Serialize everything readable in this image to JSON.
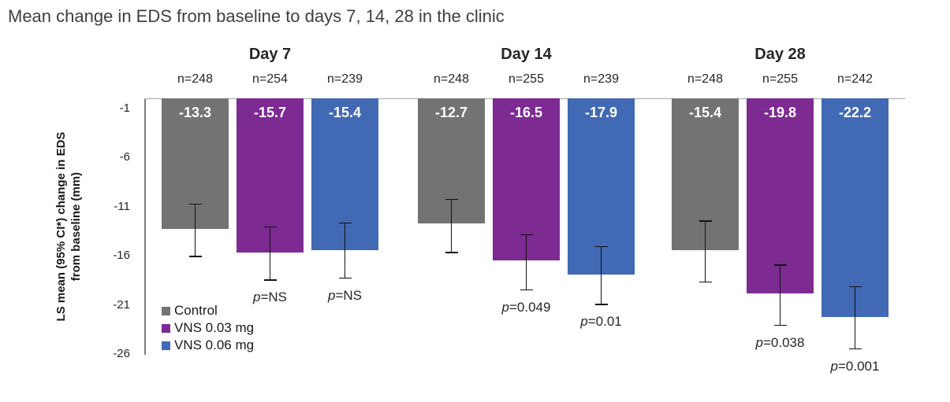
{
  "title": "Mean change in EDS from baseline to days 7, 14, 28 in the clinic",
  "colors": {
    "control": "#737373",
    "vns_003": "#7D2A93",
    "vns_006": "#4169B4",
    "title_text": "#3F3F3F",
    "axis_line": "#7F7F7F",
    "baseline": "#A6A6A6",
    "bar_value_text": "#FFFFFF",
    "body_text": "#262626"
  },
  "chart_data": {
    "type": "bar",
    "title": "Mean change in EDS from baseline to days 7, 14, 28 in the clinic",
    "ylabel_line1": "LS mean (95% CI*) change in EDS",
    "ylabel_line2": "from baseline (mm)",
    "xlabel": "",
    "ylim": [
      0,
      -27
    ],
    "yticks": [
      -1,
      -6,
      -11,
      -16,
      -21,
      -26
    ],
    "grid": false,
    "legend_position": "inside-bottom-left",
    "categories": [
      "Day 7",
      "Day 14",
      "Day 28"
    ],
    "series": [
      {
        "name": "Control",
        "color": "#737373"
      },
      {
        "name": "VNS 0.03 mg",
        "color": "#7D2A93"
      },
      {
        "name": "VNS 0.06 mg",
        "color": "#4169B4"
      }
    ],
    "groups": [
      {
        "label": "Day 7",
        "bars": [
          {
            "series": "Control",
            "n_label": "n=248",
            "value": -13.3,
            "value_label": "-13.3",
            "ci": [
              -10.7,
              -16.0
            ],
            "p_label": null
          },
          {
            "series": "VNS 0.03 mg",
            "n_label": "n=254",
            "value": -15.7,
            "value_label": "-15.7",
            "ci": [
              -13.0,
              -18.4
            ],
            "p_label": "p=NS"
          },
          {
            "series": "VNS 0.06 mg",
            "n_label": "n=239",
            "value": -15.4,
            "value_label": "-15.4",
            "ci": [
              -12.6,
              -18.2
            ],
            "p_label": "p=NS"
          }
        ]
      },
      {
        "label": "Day 14",
        "bars": [
          {
            "series": "Control",
            "n_label": "n=248",
            "value": -12.7,
            "value_label": "-12.7",
            "ci": [
              -10.2,
              -15.6
            ],
            "p_label": null
          },
          {
            "series": "VNS 0.03 mg",
            "n_label": "n=255",
            "value": -16.5,
            "value_label": "-16.5",
            "ci": [
              -13.8,
              -19.4
            ],
            "p_label": "p=0.049"
          },
          {
            "series": "VNS 0.06 mg",
            "n_label": "n=239",
            "value": -17.9,
            "value_label": "-17.9",
            "ci": [
              -15.0,
              -20.9
            ],
            "p_label": "p=0.01"
          }
        ]
      },
      {
        "label": "Day 28",
        "bars": [
          {
            "series": "Control",
            "n_label": "n=248",
            "value": -15.4,
            "value_label": "-15.4",
            "ci": [
              -12.4,
              -18.6
            ],
            "p_label": null
          },
          {
            "series": "VNS 0.03 mg",
            "n_label": "n=255",
            "value": -19.8,
            "value_label": "-19.8",
            "ci": [
              -16.9,
              -23.0
            ],
            "p_label": "p=0.038"
          },
          {
            "series": "VNS 0.06 mg",
            "n_label": "n=242",
            "value": -22.2,
            "value_label": "-22.2",
            "ci": [
              -19.1,
              -25.4
            ],
            "p_label": "p=0.001"
          }
        ]
      }
    ]
  }
}
